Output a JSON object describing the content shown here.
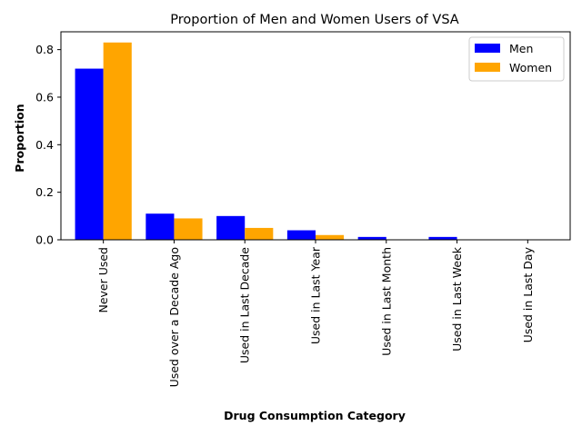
{
  "chart_data": {
    "type": "bar",
    "title": "Proportion of Men and Women Users of VSA",
    "xlabel": "Drug Consumption Category",
    "ylabel": "Proportion",
    "categories": [
      "Never Used",
      "Used over a Decade Ago",
      "Used in Last Decade",
      "Used in Last Year",
      "Used in Last Month",
      "Used in Last Week",
      "Used in Last Day"
    ],
    "series": [
      {
        "name": "Men",
        "color": "#0000ff",
        "values": [
          0.72,
          0.11,
          0.1,
          0.04,
          0.012,
          0.012,
          0.0
        ]
      },
      {
        "name": "Women",
        "color": "#ffa500",
        "values": [
          0.83,
          0.09,
          0.05,
          0.02,
          0.0,
          0.0,
          0.0
        ]
      }
    ],
    "ylim": [
      0,
      0.875
    ],
    "yticks": [
      0.0,
      0.2,
      0.4,
      0.6,
      0.8
    ],
    "ytick_labels": [
      "0.0",
      "0.2",
      "0.4",
      "0.6",
      "0.8"
    ],
    "grid": false,
    "legend_position": "top-right",
    "xtick_rotation": "vertical"
  }
}
